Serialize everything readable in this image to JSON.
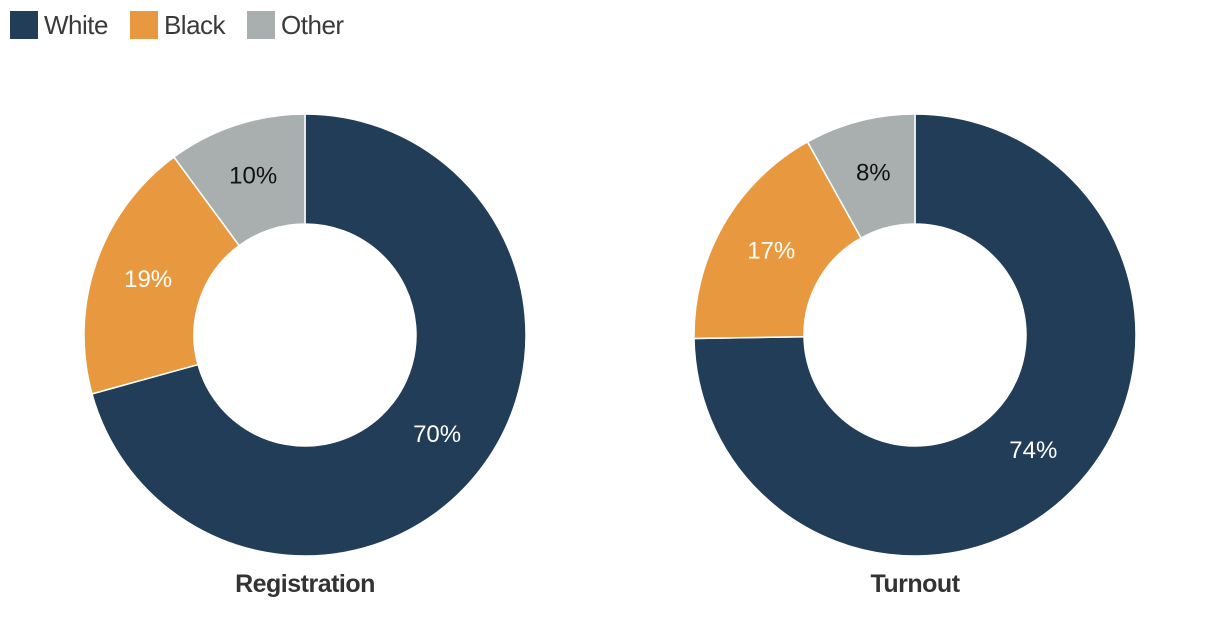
{
  "legend": [
    {
      "label": "White",
      "color": "#223d57"
    },
    {
      "label": "Black",
      "color": "#e8993f"
    },
    {
      "label": "Other",
      "color": "#a9aeae"
    }
  ],
  "chart_data": [
    {
      "type": "pie",
      "title": "Registration",
      "categories": [
        "White",
        "Black",
        "Other"
      ],
      "values": [
        70,
        19,
        10
      ],
      "labels": [
        "70%",
        "19%",
        "10%"
      ],
      "colors": [
        "#223d57",
        "#e8993f",
        "#a9aeae"
      ],
      "label_colors": [
        "#ffffff",
        "#ffffff",
        "#111111"
      ]
    },
    {
      "type": "pie",
      "title": "Turnout",
      "categories": [
        "White",
        "Black",
        "Other"
      ],
      "values": [
        74,
        17,
        8
      ],
      "labels": [
        "74%",
        "17%",
        "8%"
      ],
      "colors": [
        "#223d57",
        "#e8993f",
        "#a9aeae"
      ],
      "label_colors": [
        "#ffffff",
        "#ffffff",
        "#111111"
      ]
    }
  ]
}
